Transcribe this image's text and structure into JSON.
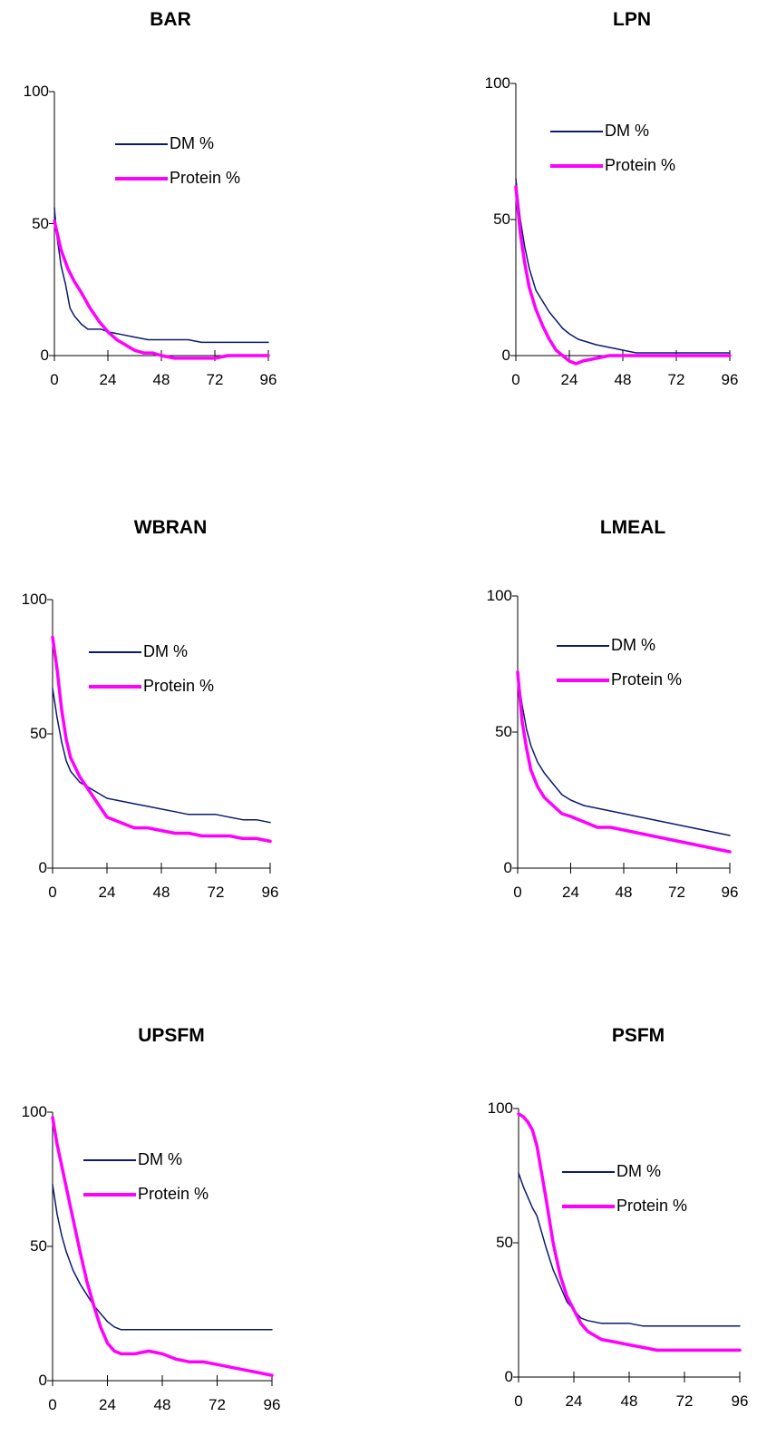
{
  "colors": {
    "dm": "#0a1a6e",
    "protein": "#ff00ff",
    "axis": "#000000"
  },
  "chart_data": [
    {
      "type": "line",
      "title": "BAR",
      "xticks": [
        0,
        24,
        48,
        72,
        96
      ],
      "yticks": [
        0,
        50,
        100
      ],
      "xlim": [
        0,
        96
      ],
      "ylim": [
        0,
        100
      ],
      "legend_position": "top-right",
      "series": [
        {
          "name": "DM %",
          "x": [
            0,
            1,
            3,
            5,
            7,
            9,
            12,
            15,
            18,
            21,
            24,
            30,
            36,
            42,
            48,
            54,
            60,
            66,
            72,
            78,
            84,
            90,
            96
          ],
          "values": [
            56,
            46,
            34,
            27,
            18,
            15,
            12,
            10,
            10,
            10,
            9,
            8,
            7,
            6,
            6,
            6,
            6,
            5,
            5,
            5,
            5,
            5,
            5
          ]
        },
        {
          "name": "Protein %",
          "x": [
            0,
            3,
            6,
            9,
            12,
            16,
            20,
            24,
            28,
            32,
            36,
            40,
            44,
            48,
            54,
            60,
            66,
            72,
            78,
            84,
            90,
            96
          ],
          "values": [
            51,
            40,
            33,
            28,
            24,
            18,
            13,
            9,
            6,
            4,
            2,
            1,
            1,
            0,
            -1,
            -1,
            -1,
            -1,
            0,
            0,
            0,
            0
          ]
        }
      ]
    },
    {
      "type": "line",
      "title": "LPN",
      "xticks": [
        0,
        24,
        48,
        72,
        96
      ],
      "yticks": [
        0,
        50,
        100
      ],
      "xlim": [
        0,
        96
      ],
      "ylim": [
        0,
        100
      ],
      "legend_position": "top-right",
      "series": [
        {
          "name": "DM %",
          "x": [
            0,
            2,
            4,
            6,
            9,
            12,
            15,
            18,
            21,
            24,
            28,
            32,
            36,
            42,
            48,
            54,
            60,
            66,
            72,
            78,
            84,
            90,
            96
          ],
          "values": [
            65,
            50,
            40,
            32,
            24,
            20,
            16,
            13,
            10,
            8,
            6,
            5,
            4,
            3,
            2,
            1,
            1,
            1,
            1,
            1,
            1,
            1,
            1
          ]
        },
        {
          "name": "Protein %",
          "x": [
            0,
            2,
            4,
            6,
            9,
            12,
            15,
            18,
            21,
            24,
            27,
            30,
            36,
            42,
            48,
            54,
            60,
            66,
            72,
            78,
            84,
            90,
            96
          ],
          "values": [
            62,
            45,
            34,
            25,
            17,
            11,
            6,
            2,
            0,
            -2,
            -3,
            -2,
            -1,
            0,
            0,
            0,
            0,
            0,
            0,
            0,
            0,
            0,
            0
          ]
        }
      ]
    },
    {
      "type": "line",
      "title": "WBRAN",
      "xticks": [
        0,
        24,
        48,
        72,
        96
      ],
      "yticks": [
        0,
        50,
        100
      ],
      "xlim": [
        0,
        96
      ],
      "ylim": [
        0,
        100
      ],
      "legend_position": "top-right",
      "series": [
        {
          "name": "DM %",
          "x": [
            0,
            2,
            4,
            6,
            8,
            12,
            16,
            20,
            24,
            30,
            36,
            42,
            48,
            54,
            60,
            66,
            72,
            78,
            84,
            90,
            96
          ],
          "values": [
            67,
            56,
            47,
            40,
            36,
            32,
            30,
            28,
            26,
            25,
            24,
            23,
            22,
            21,
            20,
            20,
            20,
            19,
            18,
            18,
            17
          ]
        },
        {
          "name": "Protein %",
          "x": [
            0,
            2,
            4,
            6,
            8,
            12,
            16,
            20,
            24,
            30,
            36,
            42,
            48,
            54,
            60,
            66,
            72,
            78,
            84,
            90,
            96
          ],
          "values": [
            86,
            74,
            59,
            48,
            41,
            34,
            29,
            24,
            19,
            17,
            15,
            15,
            14,
            13,
            13,
            12,
            12,
            12,
            11,
            11,
            10
          ]
        }
      ]
    },
    {
      "type": "line",
      "title": "LMEAL",
      "xticks": [
        0,
        24,
        48,
        72,
        96
      ],
      "yticks": [
        0,
        50,
        100
      ],
      "xlim": [
        0,
        96
      ],
      "ylim": [
        0,
        100
      ],
      "legend_position": "top-right",
      "series": [
        {
          "name": "DM %",
          "x": [
            0,
            2,
            4,
            6,
            9,
            12,
            16,
            20,
            24,
            30,
            36,
            42,
            48,
            54,
            60,
            66,
            72,
            78,
            84,
            90,
            96
          ],
          "values": [
            71,
            60,
            51,
            45,
            39,
            35,
            31,
            27,
            25,
            23,
            22,
            21,
            20,
            19,
            18,
            17,
            16,
            15,
            14,
            13,
            12
          ]
        },
        {
          "name": "Protein %",
          "x": [
            0,
            2,
            4,
            6,
            9,
            12,
            16,
            20,
            24,
            30,
            36,
            42,
            48,
            54,
            60,
            66,
            72,
            78,
            84,
            90,
            96
          ],
          "values": [
            72,
            54,
            44,
            36,
            30,
            26,
            23,
            20,
            19,
            17,
            15,
            15,
            14,
            13,
            12,
            11,
            10,
            9,
            8,
            7,
            6
          ]
        }
      ]
    },
    {
      "type": "line",
      "title": "UPSFM",
      "xticks": [
        0,
        24,
        48,
        72,
        96
      ],
      "yticks": [
        0,
        50,
        100
      ],
      "xlim": [
        0,
        96
      ],
      "ylim": [
        0,
        100
      ],
      "legend_position": "top-right",
      "series": [
        {
          "name": "DM %",
          "x": [
            0,
            2,
            4,
            6,
            9,
            12,
            15,
            18,
            21,
            24,
            27,
            30,
            36,
            42,
            48,
            54,
            60,
            66,
            72,
            78,
            84,
            90,
            96
          ],
          "values": [
            73,
            62,
            54,
            48,
            41,
            36,
            32,
            28,
            25,
            22,
            20,
            19,
            19,
            19,
            19,
            19,
            19,
            19,
            19,
            19,
            19,
            19,
            19
          ]
        },
        {
          "name": "Protein %",
          "x": [
            0,
            2,
            4,
            6,
            9,
            12,
            15,
            18,
            21,
            24,
            27,
            30,
            33,
            36,
            42,
            48,
            54,
            60,
            66,
            72,
            78,
            84,
            90,
            96
          ],
          "values": [
            98,
            88,
            80,
            72,
            60,
            48,
            37,
            28,
            20,
            14,
            11,
            10,
            10,
            10,
            11,
            10,
            8,
            7,
            7,
            6,
            5,
            4,
            3,
            2
          ]
        }
      ]
    },
    {
      "type": "line",
      "title": "PSFM",
      "xticks": [
        0,
        24,
        48,
        72,
        96
      ],
      "yticks": [
        0,
        50,
        100
      ],
      "xlim": [
        0,
        96
      ],
      "ylim": [
        0,
        100
      ],
      "legend_position": "top-right",
      "series": [
        {
          "name": "DM %",
          "x": [
            0,
            2,
            4,
            6,
            8,
            10,
            12,
            15,
            18,
            21,
            24,
            27,
            30,
            36,
            42,
            48,
            54,
            60,
            66,
            72,
            78,
            84,
            90,
            96
          ],
          "values": [
            76,
            71,
            67,
            63,
            60,
            54,
            48,
            40,
            34,
            28,
            25,
            22,
            21,
            20,
            20,
            20,
            19,
            19,
            19,
            19,
            19,
            19,
            19,
            19
          ]
        },
        {
          "name": "Protein %",
          "x": [
            0,
            2,
            4,
            6,
            8,
            10,
            12,
            15,
            18,
            21,
            24,
            27,
            30,
            36,
            42,
            48,
            54,
            60,
            66,
            72,
            78,
            84,
            90,
            96
          ],
          "values": [
            98,
            97,
            95,
            92,
            86,
            76,
            66,
            50,
            38,
            30,
            25,
            20,
            17,
            14,
            13,
            12,
            11,
            10,
            10,
            10,
            10,
            10,
            10,
            10
          ]
        }
      ]
    }
  ]
}
